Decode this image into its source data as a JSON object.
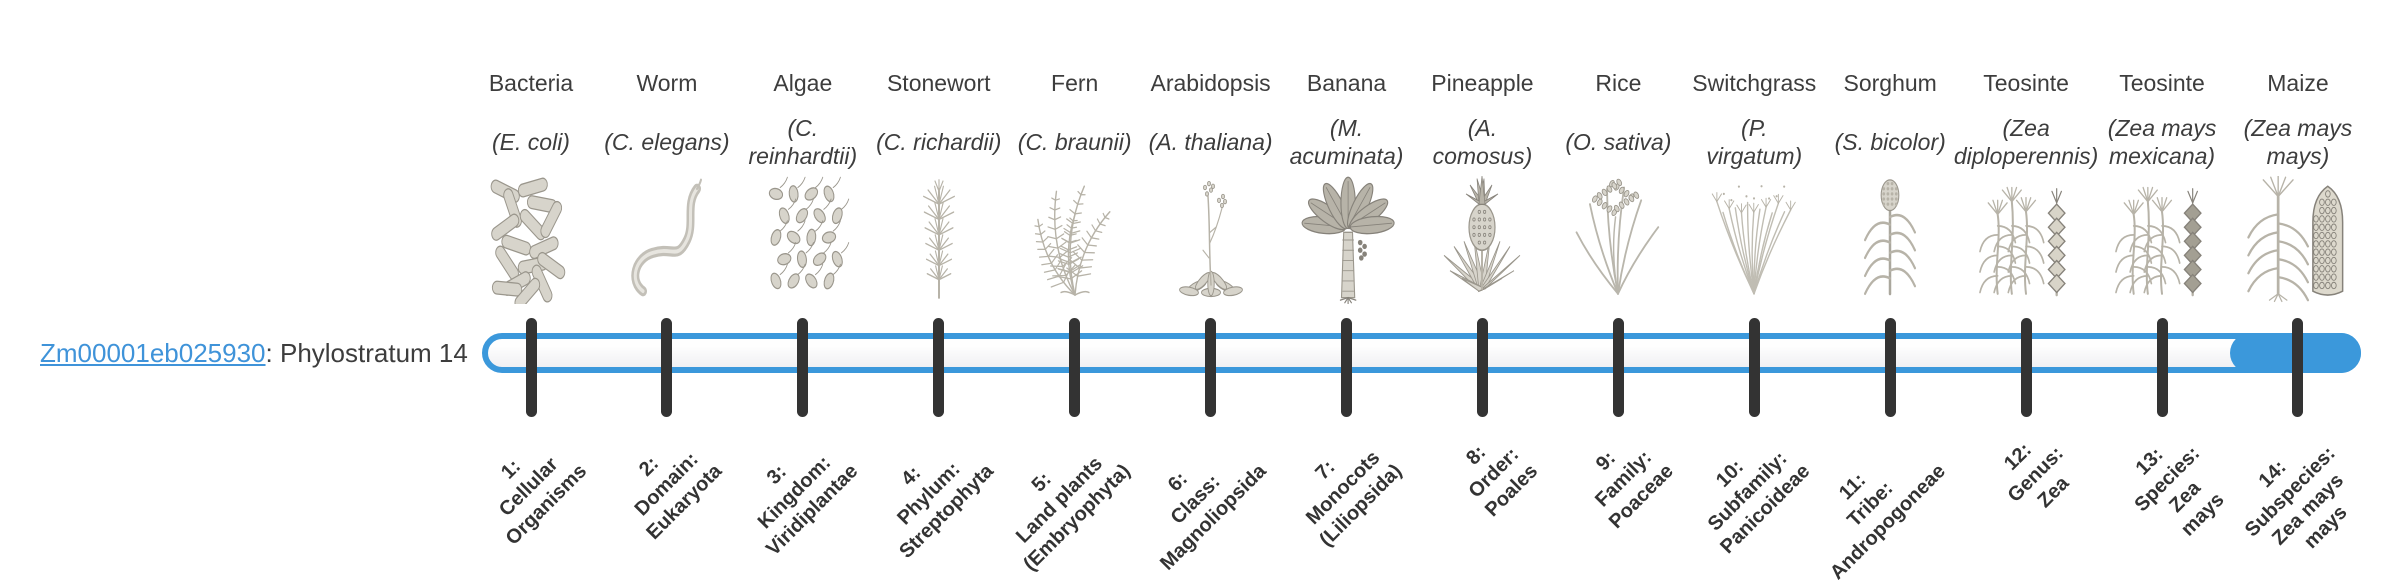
{
  "colors": {
    "accent_blue": "#3b98db",
    "tick_color": "#333333",
    "text_color": "#3d3d3d",
    "link_color": "#3f93d9",
    "illustration_gray": "#b7b3a8"
  },
  "gene": {
    "id": "Zm00001eb025930",
    "suffix": ": Phylostratum 14",
    "phylostratum_shown": "14"
  },
  "strata": [
    {
      "number": "1",
      "name": "Bacteria",
      "species": "(E. coli)",
      "icon": "bacteria",
      "tick_label": "1:\nCellular\nOrganisms"
    },
    {
      "number": "2",
      "name": "Worm",
      "species": "(C. elegans)",
      "icon": "worm",
      "tick_label": "2:\nDomain:\nEukaryota"
    },
    {
      "number": "3",
      "name": "Algae",
      "species": "(C.\nreinhardtii)",
      "icon": "algae",
      "tick_label": "3:\nKingdom:\nViridiplantae"
    },
    {
      "number": "4",
      "name": "Stonewort",
      "species": "(C. richardii)",
      "icon": "stonewort",
      "tick_label": "4:\nPhylum:\nStreptophyta"
    },
    {
      "number": "5",
      "name": "Fern",
      "species": "(C. braunii)",
      "icon": "fern",
      "tick_label": "5:\nLand plants\n(Embryophyta)"
    },
    {
      "number": "6",
      "name": "Arabidopsis",
      "species": "(A. thaliana)",
      "icon": "arabidopsis",
      "tick_label": "6:\nClass:\nMagnoliopsida"
    },
    {
      "number": "7",
      "name": "Banana",
      "species": "(M.\nacuminata)",
      "icon": "banana",
      "tick_label": "7:\nMonocots\n(Liliopsida)"
    },
    {
      "number": "8",
      "name": "Pineapple",
      "species": "(A.\ncomosus)",
      "icon": "pineapple",
      "tick_label": "8:\nOrder:\nPoales"
    },
    {
      "number": "9",
      "name": "Rice",
      "species": "(O. sativa)",
      "icon": "rice",
      "tick_label": "9:\nFamily:\nPoaceae"
    },
    {
      "number": "10",
      "name": "Switchgrass",
      "species": "(P.\nvirgatum)",
      "icon": "switchgrass",
      "tick_label": "10:\nSubfamily:\nPanicoideae"
    },
    {
      "number": "11",
      "name": "Sorghum",
      "species": "(S. bicolor)",
      "icon": "sorghum",
      "tick_label": "11:\nTribe:\nAndropogoneae"
    },
    {
      "number": "12",
      "name": "Teosinte",
      "species": "(Zea\ndiploperennis)",
      "icon": "teosinte-diploperennis",
      "tick_label": "12:\nGenus:\nZea"
    },
    {
      "number": "13",
      "name": "Teosinte",
      "species": "(Zea mays\nmexicana)",
      "icon": "teosinte-mexicana",
      "tick_label": "13:\nSpecies:\nZea\nmays"
    },
    {
      "number": "14",
      "name": "Maize",
      "species": "(Zea mays\nmays)",
      "icon": "maize",
      "tick_label": "14:\nSubspecies:\nZea mays\nmays"
    }
  ]
}
